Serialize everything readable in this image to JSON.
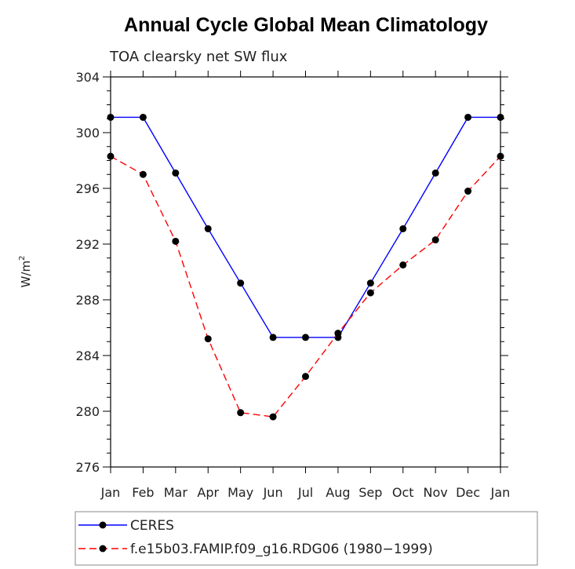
{
  "chart_data": {
    "type": "line",
    "title": "Annual Cycle Global Mean Climatology",
    "subtitle": "TOA clearsky net SW flux",
    "ylabel": "W/m",
    "ylabel_sup": "2",
    "xlabel": "",
    "categories": [
      "Jan",
      "Feb",
      "Mar",
      "Apr",
      "May",
      "Jun",
      "Jul",
      "Aug",
      "Sep",
      "Oct",
      "Nov",
      "Dec",
      "Jan"
    ],
    "ylim": [
      276,
      304
    ],
    "yticks": [
      276,
      280,
      284,
      288,
      292,
      296,
      300,
      304
    ],
    "series": [
      {
        "name": "CERES",
        "color": "#0000ff",
        "style": "solid",
        "values": [
          301.1,
          301.1,
          297.1,
          293.1,
          289.2,
          285.3,
          285.3,
          285.3,
          289.2,
          293.1,
          297.1,
          301.1,
          301.1
        ]
      },
      {
        "name": "f.e15b03.FAMIP.f09_g16.RDG06 (1980−1999)",
        "color": "#ff0000",
        "style": "dashed",
        "values": [
          298.3,
          297.0,
          292.2,
          285.2,
          279.9,
          279.6,
          282.5,
          285.6,
          288.5,
          290.5,
          292.3,
          295.8,
          298.3
        ]
      }
    ]
  }
}
